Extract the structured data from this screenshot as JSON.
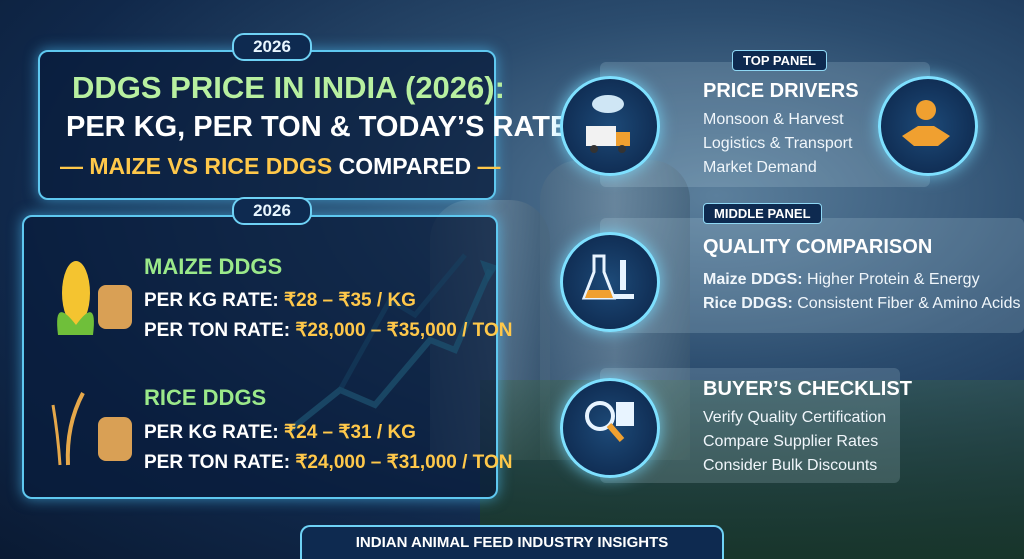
{
  "badge_top": "2026",
  "badge_bottom": "2026",
  "title": {
    "line1": "DDGS PRICE IN INDIA (2026):",
    "line2": "PER KG, PER TON & TODAY’S RATE",
    "line3_highlight": "MAIZE VS RICE DDGS",
    "line3_rest": "COMPARED"
  },
  "maize": {
    "heading": "MAIZE DDGS",
    "kg_label": "PER KG RATE:",
    "kg_rate": "₹28 – ₹35 / KG",
    "ton_label": "PER TON RATE:",
    "ton_rate": "₹28,000 – ₹35,000 / TON"
  },
  "rice": {
    "heading": "RICE DDGS",
    "kg_label": "PER KG RATE:",
    "kg_rate": "₹24 – ₹31 / KG",
    "ton_label": "PER TON RATE:",
    "ton_rate": "₹24,000 – ₹31,000 / TON"
  },
  "top_panel": {
    "label": "TOP PANEL",
    "heading": "PRICE DRIVERS",
    "items": [
      "Monsoon & Harvest",
      "Logistics & Transport",
      "Market Demand"
    ]
  },
  "middle_panel": {
    "label": "MIDDLE PANEL",
    "heading": "QUALITY COMPARISON",
    "items": [
      {
        "name": "Maize DDGS:",
        "text": "Higher Protein & Energy"
      },
      {
        "name": "Rice DDGS:",
        "text": "Consistent Fiber & Amino Acids"
      }
    ]
  },
  "checklist": {
    "heading": "BUYER’S CHECKLIST",
    "items": [
      "Verify Quality Certification",
      "Compare Supplier Rates",
      "Consider Bulk Discounts"
    ]
  },
  "footer": "INDIAN ANIMAL FEED INDUSTRY INSIGHTS"
}
